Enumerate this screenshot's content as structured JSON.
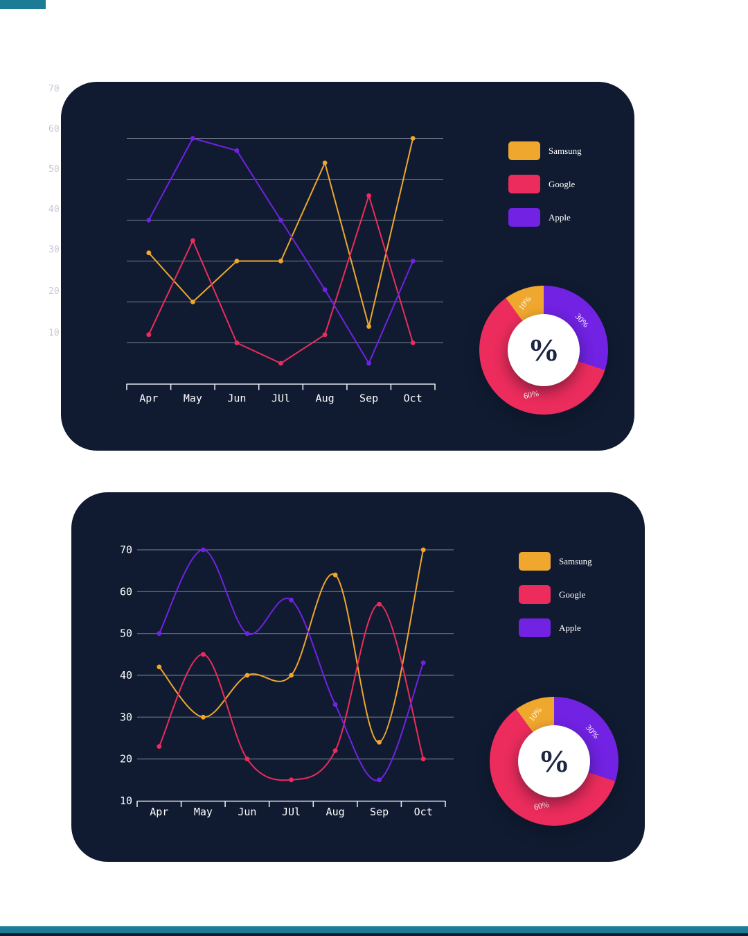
{
  "page": {
    "background": "#ffffff"
  },
  "accents": {
    "teal": "#1c7b95",
    "dark_edge": "#0f1b30"
  },
  "outer_axis_labels": [
    "70",
    "60",
    "50",
    "40",
    "30",
    "20",
    "10"
  ],
  "legend": {
    "items": [
      {
        "label": "Samsung",
        "color": "#efa72e"
      },
      {
        "label": "Google",
        "color": "#ec2c5c"
      },
      {
        "label": "Apple",
        "color": "#7122e2"
      }
    ]
  },
  "donut": {
    "type": "pie",
    "center_label": "%",
    "slices": [
      {
        "name": "Apple",
        "label": "30%",
        "value": 30,
        "color": "#7122e2"
      },
      {
        "name": "Google",
        "label": "60%",
        "value": 60,
        "color": "#ec2c5c"
      },
      {
        "name": "Samsung",
        "label": "10%",
        "value": 10,
        "color": "#efa72e"
      }
    ]
  },
  "chart_data": [
    {
      "type": "line",
      "smooth": false,
      "title": "",
      "xlabel": "",
      "ylabel": "",
      "categories": [
        "Apr",
        "May",
        "Jun",
        "JUl",
        "Aug",
        "Sep",
        "Oct"
      ],
      "series": [
        {
          "name": "Samsung",
          "color": "#efa72e",
          "values": [
            42,
            30,
            40,
            40,
            64,
            24,
            70
          ]
        },
        {
          "name": "Google",
          "color": "#ec2c5c",
          "values": [
            22,
            45,
            20,
            15,
            22,
            56,
            20
          ]
        },
        {
          "name": "Apple",
          "color": "#7122e2",
          "values": [
            50,
            70,
            67,
            50,
            33,
            15,
            40
          ]
        }
      ],
      "ylim": [
        10,
        70
      ],
      "yticks": [
        70,
        60,
        50,
        40,
        30,
        20,
        10
      ],
      "grid": true,
      "ytick_labels_visible": false,
      "legend_position": "right"
    },
    {
      "type": "line",
      "smooth": true,
      "title": "",
      "xlabel": "",
      "ylabel": "",
      "categories": [
        "Apr",
        "May",
        "Jun",
        "JUl",
        "Aug",
        "Sep",
        "Oct"
      ],
      "series": [
        {
          "name": "Samsung",
          "color": "#efa72e",
          "values": [
            42,
            30,
            40,
            40,
            64,
            24,
            70
          ]
        },
        {
          "name": "Google",
          "color": "#ec2c5c",
          "values": [
            23,
            45,
            20,
            15,
            22,
            57,
            20
          ]
        },
        {
          "name": "Apple",
          "color": "#7122e2",
          "values": [
            50,
            70,
            50,
            58,
            33,
            15,
            43
          ]
        }
      ],
      "ylim": [
        10,
        70
      ],
      "yticks": [
        70,
        60,
        50,
        40,
        30,
        20,
        10
      ],
      "grid": true,
      "ytick_labels_visible": true,
      "legend_position": "right"
    }
  ]
}
